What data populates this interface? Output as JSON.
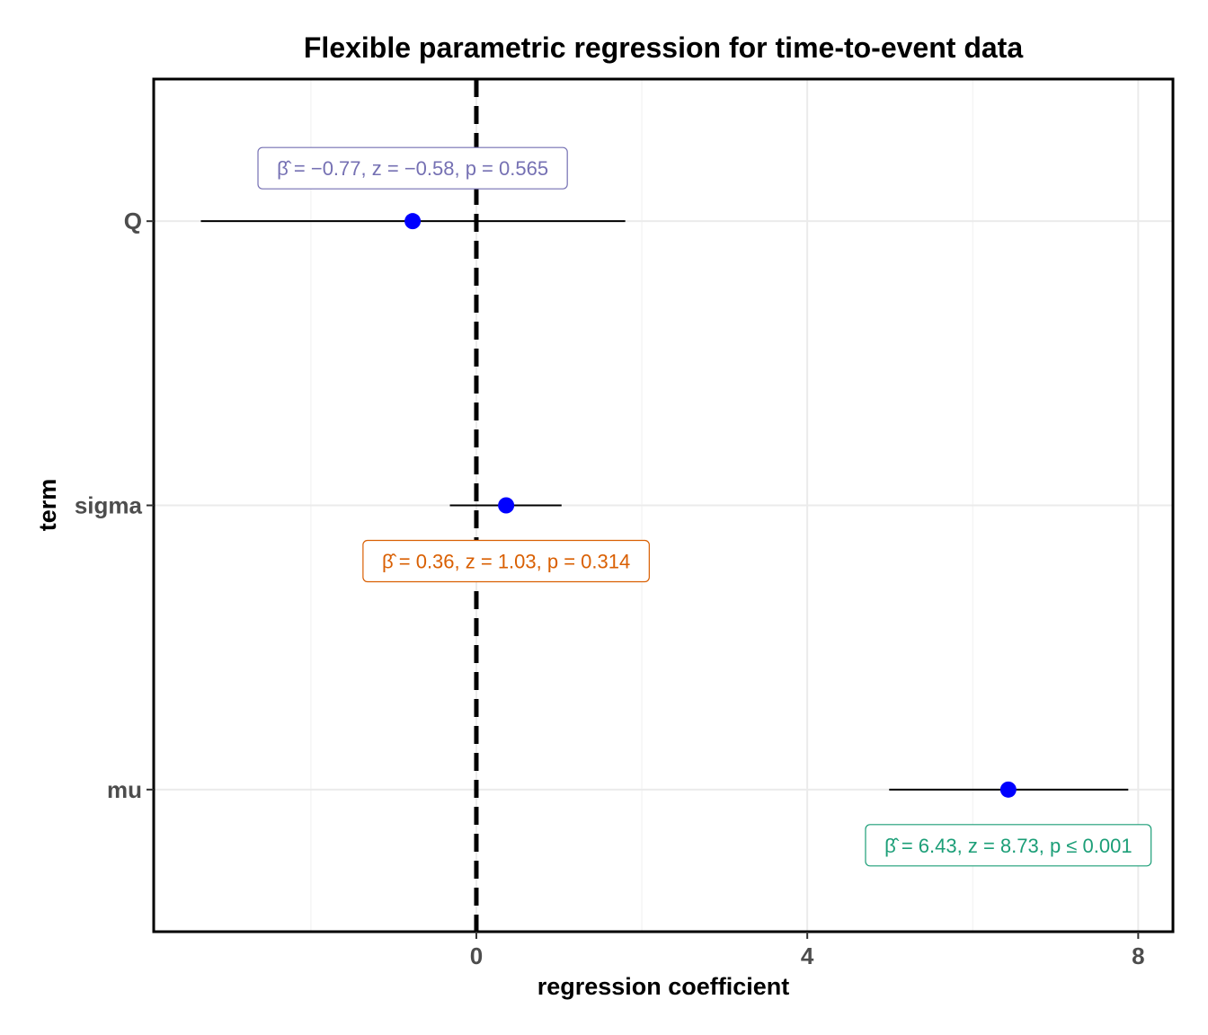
{
  "chart_data": {
    "type": "scatter",
    "subtype": "coefficient-forest-plot",
    "title": "Flexible parametric regression for time-to-event data",
    "xlabel": "regression coefficient",
    "ylabel": "term",
    "xlim": [
      -3.9,
      8.42
    ],
    "x_ticks": [
      0,
      4,
      8
    ],
    "x_tick_labels": [
      "0",
      "4",
      "8"
    ],
    "reference_line": 0,
    "grid": true,
    "point_color": "#0000ff",
    "terms": [
      {
        "term": "Q",
        "estimate": -0.77,
        "conf_low": -3.33,
        "conf_high": 1.8,
        "label": "β̂ = −0.77,  z = −0.58,  p = 0.565",
        "label_color": "#7570b3",
        "label_position": "above"
      },
      {
        "term": "sigma",
        "estimate": 0.36,
        "conf_low": -0.32,
        "conf_high": 1.03,
        "label": "β̂ = 0.36,  z = 1.03,  p = 0.314",
        "label_color": "#d95f02",
        "label_position": "below"
      },
      {
        "term": "mu",
        "estimate": 6.43,
        "conf_low": 4.99,
        "conf_high": 7.88,
        "label": "β̂ = 6.43,  z = 8.73,  p ≤ 0.001",
        "label_color": "#1b9e77",
        "label_position": "below"
      }
    ]
  }
}
